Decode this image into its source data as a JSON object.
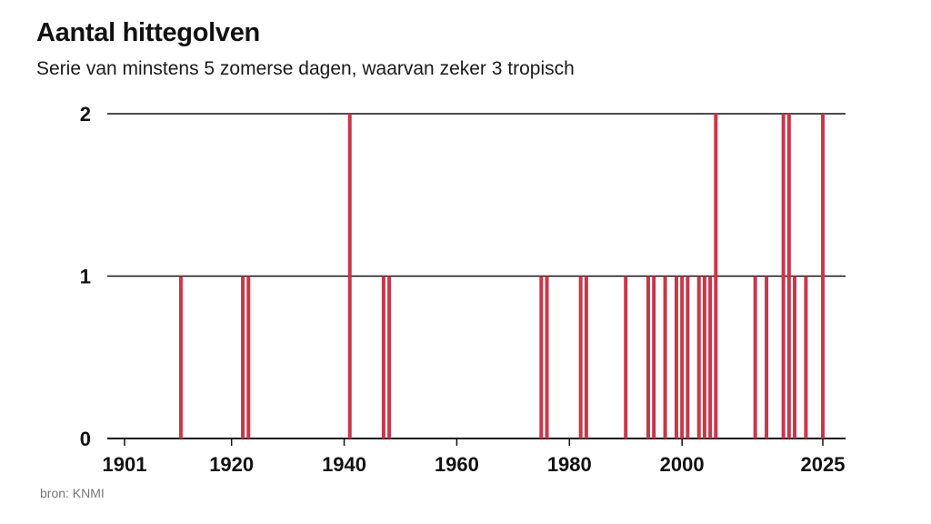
{
  "chart_data": {
    "type": "bar",
    "title": "Aantal hittegolven",
    "subtitle": "Serie van minstens 5 zomerse dagen, waarvan zeker 3 tropisch",
    "source": "bron: KNMI",
    "xlim": [
      1901,
      2025
    ],
    "ylim": [
      0,
      2
    ],
    "y_ticks": [
      0,
      1,
      2
    ],
    "x_ticks": [
      1901,
      1920,
      1940,
      1960,
      1980,
      2000,
      2025
    ],
    "grid": true,
    "bar_color": "#c8374a",
    "x": [
      1911,
      1922,
      1923,
      1941,
      1947,
      1948,
      1975,
      1976,
      1982,
      1983,
      1990,
      1994,
      1995,
      1997,
      1999,
      2000,
      2001,
      2003,
      2004,
      2005,
      2006,
      2013,
      2015,
      2018,
      2019,
      2020,
      2022,
      2025
    ],
    "values": [
      1,
      1,
      1,
      2,
      1,
      1,
      1,
      1,
      1,
      1,
      1,
      1,
      1,
      1,
      1,
      1,
      1,
      1,
      1,
      1,
      2,
      1,
      1,
      2,
      2,
      1,
      1,
      2
    ]
  }
}
